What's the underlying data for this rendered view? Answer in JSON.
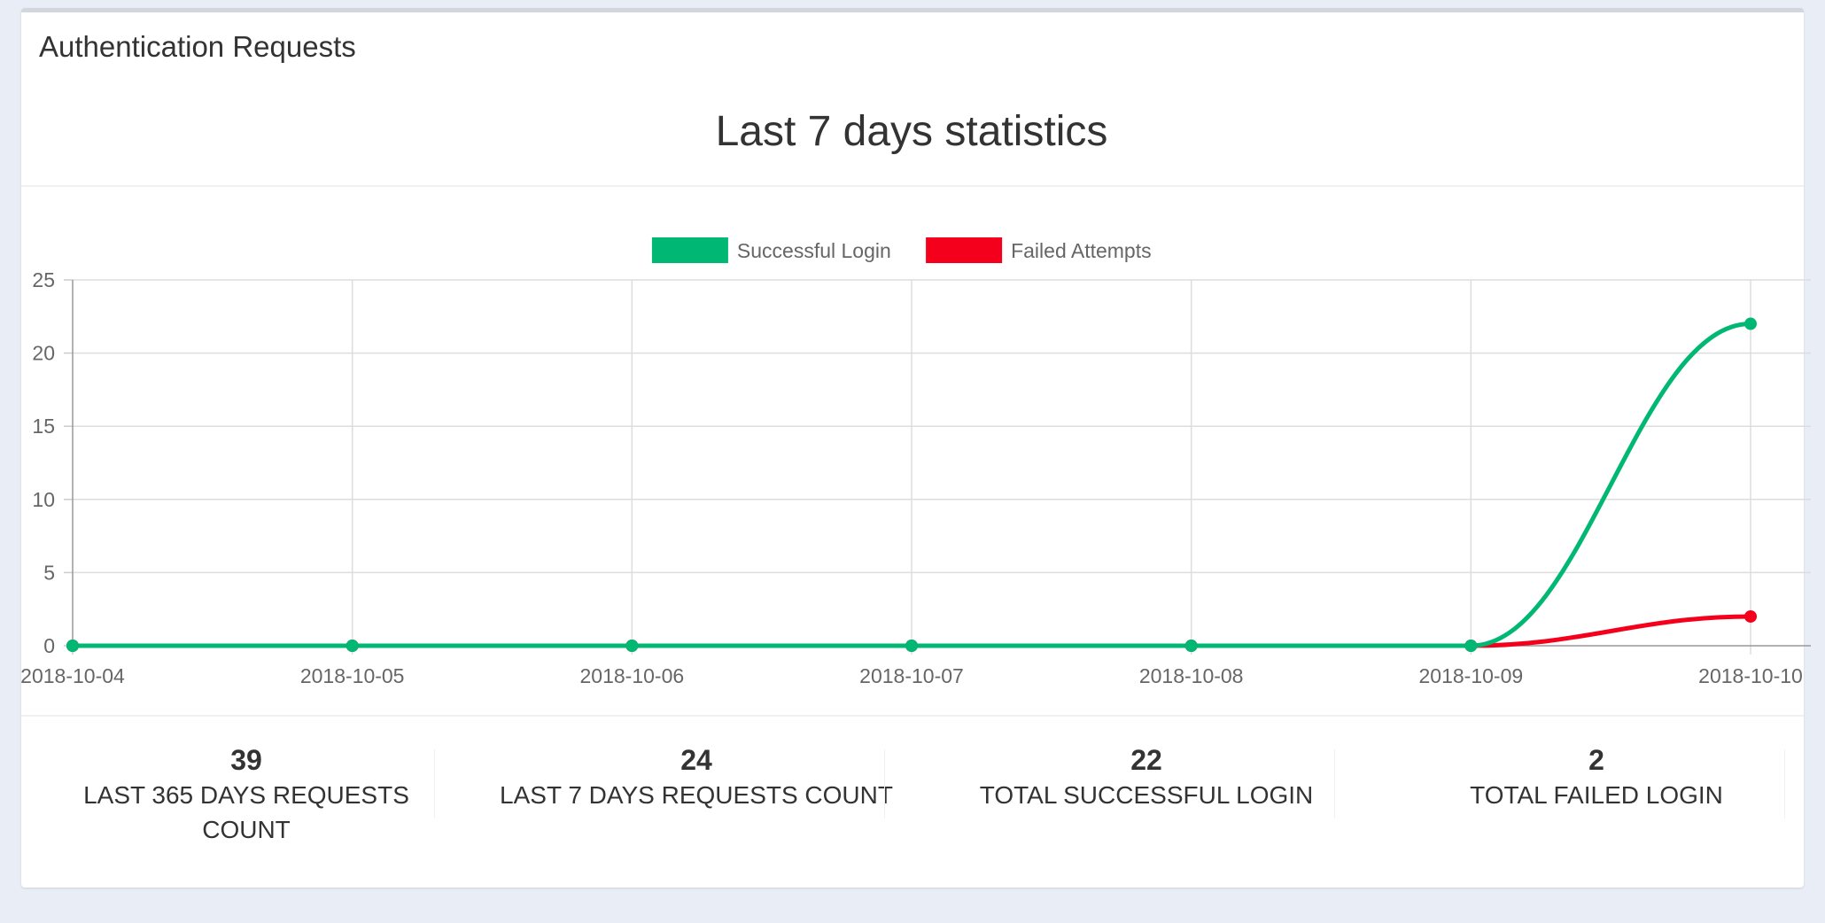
{
  "card": {
    "title": "Authentication Requests"
  },
  "chart_data": {
    "type": "line",
    "title": "Last 7 days statistics",
    "categories": [
      "2018-10-04",
      "2018-10-05",
      "2018-10-06",
      "2018-10-07",
      "2018-10-08",
      "2018-10-09",
      "2018-10-10"
    ],
    "series": [
      {
        "name": "Successful Login",
        "color": "#00b874",
        "values": [
          0,
          0,
          0,
          0,
          0,
          0,
          22
        ]
      },
      {
        "name": "Failed Attempts",
        "color": "#f5001c",
        "values": [
          0,
          0,
          0,
          0,
          0,
          0,
          2
        ]
      }
    ],
    "ylim": [
      0,
      25
    ],
    "yticks": [
      0,
      5,
      10,
      15,
      20,
      25
    ],
    "grid": true,
    "legend": "top-center",
    "xlabel": "",
    "ylabel": ""
  },
  "stats": [
    {
      "value": "39",
      "label": "LAST 365 DAYS REQUESTS COUNT"
    },
    {
      "value": "24",
      "label": "LAST 7 DAYS REQUESTS COUNT"
    },
    {
      "value": "22",
      "label": "TOTAL SUCCESSFUL LOGIN"
    },
    {
      "value": "2",
      "label": "TOTAL FAILED LOGIN"
    }
  ]
}
